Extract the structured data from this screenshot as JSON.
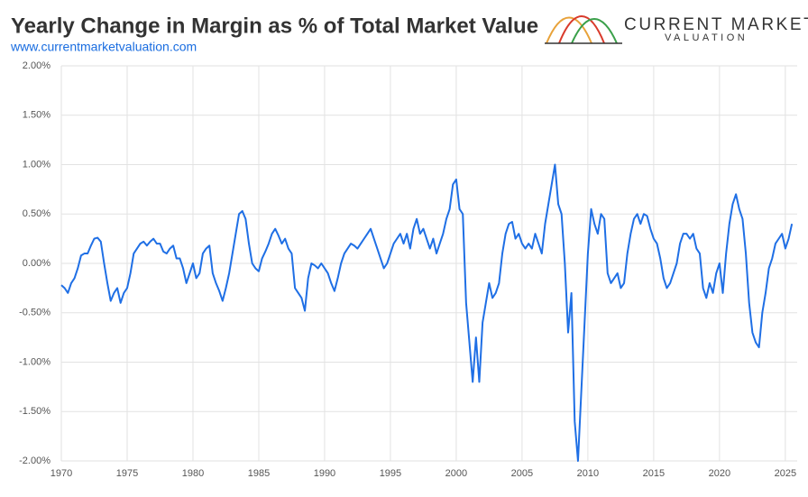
{
  "chart_data": {
    "type": "line",
    "title": "Yearly Change in Margin as % of Total Market Value",
    "subtitle": "www.currentmarketvaluation.com",
    "logo_line1": "CURRENT MARKET",
    "logo_line2": "VALUATION",
    "xlim": [
      1970,
      2025.9
    ],
    "xticks": [
      1970,
      1975,
      1980,
      1985,
      1990,
      1995,
      2000,
      2005,
      2010,
      2015,
      2020,
      2025
    ],
    "ylim": [
      -2,
      2
    ],
    "yticks": [
      {
        "value": 2,
        "label": "2.00%"
      },
      {
        "value": 1.5,
        "label": "1.50%"
      },
      {
        "value": 1,
        "label": "1.00%"
      },
      {
        "value": 0.5,
        "label": "0.50%"
      },
      {
        "value": 0,
        "label": "0.00%"
      },
      {
        "value": -0.5,
        "label": "-0.50%"
      },
      {
        "value": -1,
        "label": "-1.00%"
      },
      {
        "value": -1.5,
        "label": "-1.50%"
      },
      {
        "value": -2,
        "label": "-2.00%"
      }
    ],
    "grid": true,
    "color": "#1f6fe5",
    "x": [
      1970,
      1970.25,
      1970.5,
      1970.75,
      1971,
      1971.25,
      1971.5,
      1971.75,
      1972,
      1972.25,
      1972.5,
      1972.75,
      1973,
      1973.25,
      1973.5,
      1973.75,
      1974,
      1974.25,
      1974.5,
      1974.75,
      1975,
      1975.25,
      1975.5,
      1975.75,
      1976,
      1976.25,
      1976.5,
      1976.75,
      1977,
      1977.25,
      1977.5,
      1977.75,
      1978,
      1978.25,
      1978.5,
      1978.75,
      1979,
      1979.25,
      1979.5,
      1979.75,
      1980,
      1980.25,
      1980.5,
      1980.75,
      1981,
      1981.25,
      1981.5,
      1981.75,
      1982,
      1982.25,
      1982.5,
      1982.75,
      1983,
      1983.25,
      1983.5,
      1983.75,
      1984,
      1984.25,
      1984.5,
      1984.75,
      1985,
      1985.25,
      1985.5,
      1985.75,
      1986,
      1986.25,
      1986.5,
      1986.75,
      1987,
      1987.25,
      1987.5,
      1987.75,
      1988,
      1988.25,
      1988.5,
      1988.75,
      1989,
      1989.25,
      1989.5,
      1989.75,
      1990,
      1990.25,
      1990.5,
      1990.75,
      1991,
      1991.25,
      1991.5,
      1991.75,
      1992,
      1992.25,
      1992.5,
      1992.75,
      1993,
      1993.25,
      1993.5,
      1993.75,
      1994,
      1994.25,
      1994.5,
      1994.75,
      1995,
      1995.25,
      1995.5,
      1995.75,
      1996,
      1996.25,
      1996.5,
      1996.75,
      1997,
      1997.25,
      1997.5,
      1997.75,
      1998,
      1998.25,
      1998.5,
      1998.75,
      1999,
      1999.25,
      1999.5,
      1999.75,
      2000,
      2000.25,
      2000.5,
      2000.75,
      2001,
      2001.25,
      2001.5,
      2001.75,
      2002,
      2002.25,
      2002.5,
      2002.75,
      2003,
      2003.25,
      2003.5,
      2003.75,
      2004,
      2004.25,
      2004.5,
      2004.75,
      2005,
      2005.25,
      2005.5,
      2005.75,
      2006,
      2006.25,
      2006.5,
      2006.75,
      2007,
      2007.25,
      2007.5,
      2007.75,
      2008,
      2008.25,
      2008.5,
      2008.75,
      2009,
      2009.25,
      2009.5,
      2009.75,
      2010,
      2010.25,
      2010.5,
      2010.75,
      2011,
      2011.25,
      2011.5,
      2011.75,
      2012,
      2012.25,
      2012.5,
      2012.75,
      2013,
      2013.25,
      2013.5,
      2013.75,
      2014,
      2014.25,
      2014.5,
      2014.75,
      2015,
      2015.25,
      2015.5,
      2015.75,
      2016,
      2016.25,
      2016.5,
      2016.75,
      2017,
      2017.25,
      2017.5,
      2017.75,
      2018,
      2018.25,
      2018.5,
      2018.75,
      2019,
      2019.25,
      2019.5,
      2019.75,
      2020,
      2020.25,
      2020.5,
      2020.75,
      2021,
      2021.25,
      2021.5,
      2021.75,
      2022,
      2022.25,
      2022.5,
      2022.75,
      2023,
      2023.25,
      2023.5,
      2023.75,
      2024,
      2024.25,
      2024.5,
      2024.75,
      2025,
      2025.25,
      2025.5
    ],
    "values": [
      -0.22,
      -0.25,
      -0.3,
      -0.2,
      -0.15,
      -0.05,
      0.08,
      0.1,
      0.1,
      0.18,
      0.25,
      0.26,
      0.22,
      0,
      -0.2,
      -0.38,
      -0.3,
      -0.25,
      -0.4,
      -0.3,
      -0.25,
      -0.1,
      0.1,
      0.15,
      0.2,
      0.22,
      0.18,
      0.22,
      0.25,
      0.2,
      0.2,
      0.12,
      0.1,
      0.15,
      0.18,
      0.05,
      0.05,
      -0.05,
      -0.2,
      -0.1,
      0,
      -0.15,
      -0.1,
      0.1,
      0.15,
      0.18,
      -0.1,
      -0.2,
      -0.28,
      -0.38,
      -0.25,
      -0.1,
      0.1,
      0.3,
      0.5,
      0.53,
      0.45,
      0.2,
      0,
      -0.05,
      -0.08,
      0.05,
      0.12,
      0.2,
      0.3,
      0.35,
      0.28,
      0.2,
      0.25,
      0.15,
      0.1,
      -0.25,
      -0.3,
      -0.35,
      -0.48,
      -0.15,
      0,
      -0.02,
      -0.05,
      0,
      -0.05,
      -0.1,
      -0.2,
      -0.28,
      -0.15,
      0,
      0.1,
      0.15,
      0.2,
      0.18,
      0.15,
      0.2,
      0.25,
      0.3,
      0.35,
      0.25,
      0.15,
      0.05,
      -0.05,
      0,
      0.1,
      0.2,
      0.25,
      0.3,
      0.2,
      0.3,
      0.15,
      0.35,
      0.45,
      0.3,
      0.35,
      0.25,
      0.15,
      0.25,
      0.1,
      0.2,
      0.3,
      0.45,
      0.55,
      0.8,
      0.85,
      0.55,
      0.5,
      -0.4,
      -0.8,
      -1.2,
      -0.75,
      -1.2,
      -0.6,
      -0.4,
      -0.2,
      -0.35,
      -0.3,
      -0.2,
      0.1,
      0.3,
      0.4,
      0.42,
      0.25,
      0.3,
      0.2,
      0.15,
      0.2,
      0.15,
      0.3,
      0.2,
      0.1,
      0.4,
      0.6,
      0.8,
      1,
      0.6,
      0.5,
      0,
      -0.7,
      -0.3,
      -1.6,
      -2,
      -1.3,
      -0.6,
      0.1,
      0.55,
      0.4,
      0.3,
      0.5,
      0.45,
      -0.1,
      -0.2,
      -0.15,
      -0.1,
      -0.25,
      -0.2,
      0.1,
      0.3,
      0.45,
      0.5,
      0.4,
      0.5,
      0.48,
      0.35,
      0.25,
      0.2,
      0.05,
      -0.15,
      -0.25,
      -0.2,
      -0.1,
      0,
      0.2,
      0.3,
      0.3,
      0.25,
      0.3,
      0.15,
      0.1,
      -0.25,
      -0.35,
      -0.2,
      -0.3,
      -0.1,
      0,
      -0.3,
      0.1,
      0.4,
      0.6,
      0.7,
      0.55,
      0.45,
      0.1,
      -0.4,
      -0.7,
      -0.8,
      -0.85,
      -0.5,
      -0.3,
      -0.05,
      0.05,
      0.2,
      0.25,
      0.3,
      0.15,
      0.25,
      0.4
    ]
  }
}
